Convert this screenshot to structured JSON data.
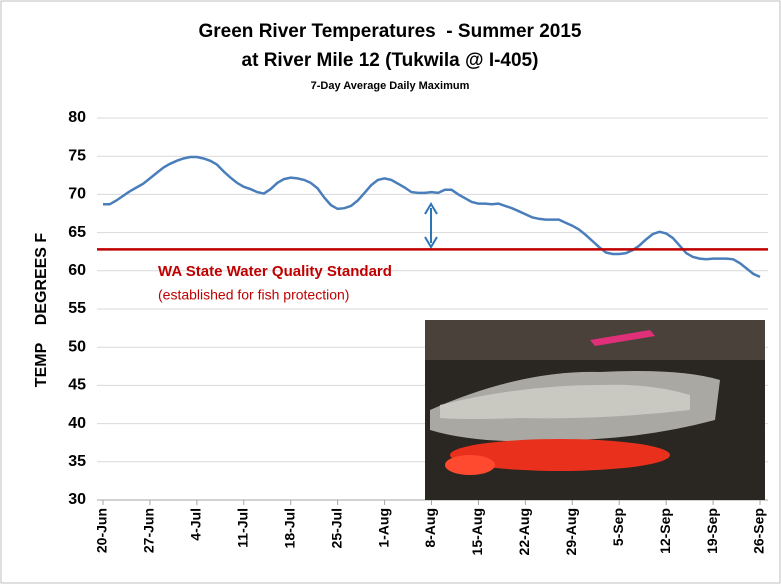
{
  "chart_data": {
    "type": "line",
    "title": "Green River Temperatures  - Summer 2015",
    "subtitle": "at River Mile 12 (Tukwila @ I-405)",
    "subtitle2": "7-Day Average Daily Maximum",
    "ylabel": "TEMP    DEGREES F",
    "categories": [
      "20-Jun",
      null,
      null,
      null,
      null,
      null,
      null,
      "27-Jun",
      null,
      null,
      null,
      null,
      null,
      null,
      "4-Jul",
      null,
      null,
      null,
      null,
      null,
      null,
      "11-Jul",
      null,
      null,
      null,
      null,
      null,
      null,
      "18-Jul",
      null,
      null,
      null,
      null,
      null,
      null,
      "25-Jul",
      null,
      null,
      null,
      null,
      null,
      null,
      "1-Aug",
      null,
      null,
      null,
      null,
      null,
      null,
      "8-Aug",
      null,
      null,
      null,
      null,
      null,
      null,
      "15-Aug",
      null,
      null,
      null,
      null,
      null,
      null,
      "22-Aug",
      null,
      null,
      null,
      null,
      null,
      null,
      "29-Aug",
      null,
      null,
      null,
      null,
      null,
      null,
      "5-Sep",
      null,
      null,
      null,
      null,
      null,
      null,
      "12-Sep",
      null,
      null,
      null,
      null,
      null,
      null,
      "19-Sep",
      null,
      null,
      null,
      null,
      null,
      null,
      "26-Sep"
    ],
    "series": [
      {
        "color": "#4a7ebb",
        "values": [
          68.7,
          68.7,
          69.2,
          69.8,
          70.4,
          70.9,
          71.4,
          72.1,
          72.8,
          73.5,
          74.0,
          74.4,
          74.7,
          74.9,
          74.9,
          74.7,
          74.4,
          73.9,
          73.0,
          72.2,
          71.5,
          71.0,
          70.7,
          70.3,
          70.1,
          70.7,
          71.5,
          72.0,
          72.2,
          72.1,
          71.9,
          71.5,
          70.8,
          69.6,
          68.6,
          68.1,
          68.2,
          68.5,
          69.2,
          70.2,
          71.2,
          71.9,
          72.1,
          71.9,
          71.4,
          70.9,
          70.3,
          70.2,
          70.2,
          70.3,
          70.2,
          70.6,
          70.6,
          70.0,
          69.5,
          69.0,
          68.8,
          68.8,
          68.7,
          68.8,
          68.5,
          68.2,
          67.8,
          67.4,
          67.0,
          66.8,
          66.7,
          66.7,
          66.7,
          66.3,
          65.9,
          65.4,
          64.7,
          63.9,
          63.1,
          62.4,
          62.2,
          62.2,
          62.3,
          62.7,
          63.3,
          64.1,
          64.8,
          65.1,
          64.9,
          64.3,
          63.3,
          62.3,
          61.8,
          61.6,
          61.5,
          61.6,
          61.6,
          61.6,
          61.5,
          61.0,
          60.3,
          59.6,
          59.2
        ]
      }
    ],
    "reference_line": {
      "value": 62.8,
      "color": "#c00000",
      "label": "WA State Water Quality Standard",
      "note": "(established for fish protection)"
    },
    "ylim": [
      30,
      80
    ],
    "yticks": [
      30,
      35,
      40,
      45,
      50,
      55,
      60,
      65,
      70,
      75,
      80
    ],
    "grid": true
  }
}
